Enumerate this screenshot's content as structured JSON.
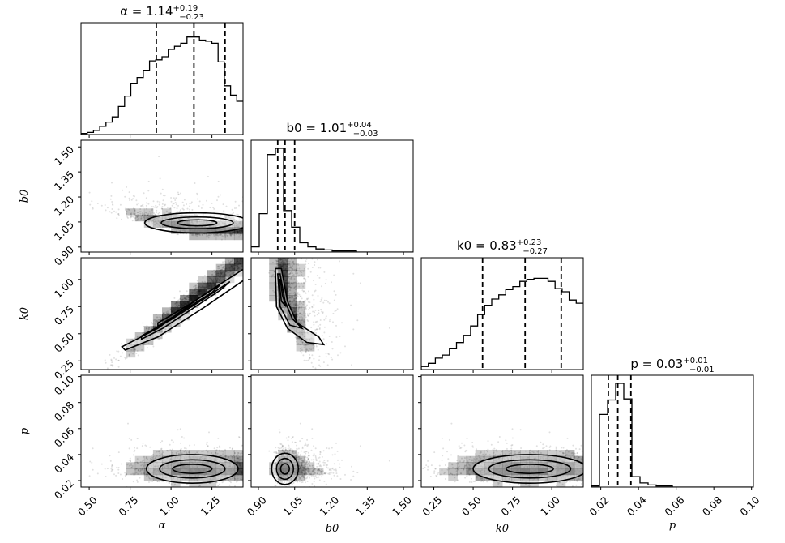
{
  "chart_data": {
    "type": "corner",
    "parameters": [
      {
        "key": "alpha",
        "symbol": "α",
        "label": "α",
        "title": "α = 1.14",
        "value": "1.14",
        "err_plus": "+0.19",
        "err_minus": "−0.23",
        "median": 1.14,
        "q16": 0.91,
        "q84": 1.33,
        "range": [
          0.45,
          1.44
        ],
        "ticks": [
          "0.50",
          "0.75",
          "1.00",
          "1.25"
        ],
        "tick_values": [
          0.5,
          0.75,
          1.0,
          1.25
        ]
      },
      {
        "key": "b0",
        "symbol": "b0",
        "label": "b0",
        "title": "b0 = 1.01",
        "value": "1.01",
        "err_plus": "+0.04",
        "err_minus": "−0.03",
        "median": 1.01,
        "q16": 0.98,
        "q84": 1.05,
        "range": [
          0.87,
          1.54
        ],
        "ticks": [
          "0.90",
          "1.05",
          "1.20",
          "1.35",
          "1.50"
        ],
        "tick_values": [
          0.9,
          1.05,
          1.2,
          1.35,
          1.5
        ]
      },
      {
        "key": "k0",
        "symbol": "k0",
        "label": "k0",
        "title": "k0 = 0.83",
        "value": "0.83",
        "err_plus": "+0.23",
        "err_minus": "−0.27",
        "median": 0.83,
        "q16": 0.56,
        "q84": 1.06,
        "range": [
          0.17,
          1.2
        ],
        "ticks": [
          "0.25",
          "0.50",
          "0.75",
          "1.00"
        ],
        "tick_values": [
          0.25,
          0.5,
          0.75,
          1.0
        ]
      },
      {
        "key": "p",
        "symbol": "p",
        "label": "p",
        "title": "p = 0.03",
        "value": "0.03",
        "err_plus": "+0.01",
        "err_minus": "−0.01",
        "median": 0.029,
        "q16": 0.024,
        "q84": 0.036,
        "range": [
          0.015,
          0.101
        ],
        "ticks": [
          "0.02",
          "0.04",
          "0.06",
          "0.08",
          "0.10"
        ],
        "tick_values": [
          0.02,
          0.04,
          0.06,
          0.08,
          0.1
        ]
      }
    ],
    "histograms": {
      "alpha": [
        0.01,
        0.02,
        0.04,
        0.08,
        0.12,
        0.17,
        0.27,
        0.37,
        0.49,
        0.55,
        0.62,
        0.71,
        0.72,
        0.75,
        0.82,
        0.85,
        0.88,
        0.94,
        0.94,
        0.91,
        0.9,
        0.88,
        0.7,
        0.47,
        0.38,
        0.32
      ],
      "b0": [
        0.05,
        0.37,
        0.94,
        1.0,
        0.4,
        0.24,
        0.09,
        0.05,
        0.03,
        0.02,
        0.01,
        0.01,
        0.01,
        0.0,
        0.0,
        0.0,
        0.0,
        0.0,
        0.0,
        0.0
      ],
      "k0": [
        0.03,
        0.06,
        0.11,
        0.14,
        0.2,
        0.26,
        0.33,
        0.42,
        0.53,
        0.62,
        0.68,
        0.72,
        0.77,
        0.8,
        0.85,
        0.87,
        0.88,
        0.88,
        0.85,
        0.78,
        0.75,
        0.67,
        0.64
      ],
      "p": [
        0.01,
        0.7,
        0.84,
        1.0,
        0.85,
        0.1,
        0.04,
        0.02,
        0.01,
        0.01,
        0.0,
        0.0,
        0.0,
        0.0,
        0.0,
        0.0,
        0.0,
        0.0,
        0.0,
        0.0
      ]
    },
    "grid": false,
    "legend": "none"
  }
}
